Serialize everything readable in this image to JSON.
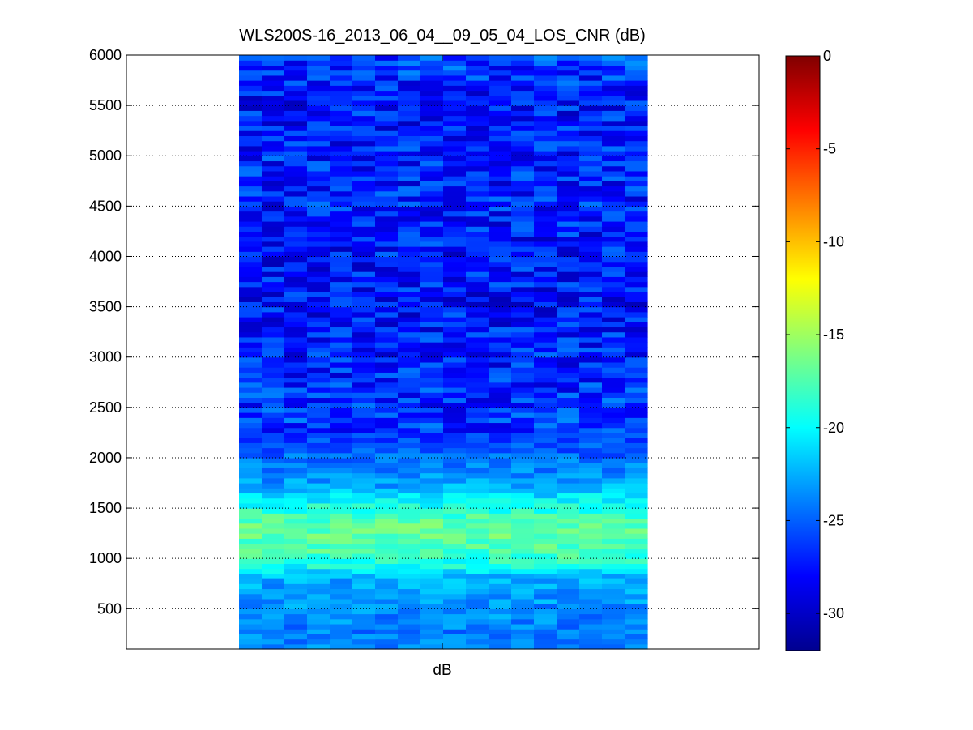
{
  "chart_data": [
    {
      "type": "heatmap",
      "title": "WLS200S-16_2013_06_04__09_05_04_LOS_CNR (dB)",
      "xlabel": "dB",
      "ylabel": "",
      "ylim": [
        100,
        6000
      ],
      "yticks": [
        500,
        1000,
        1500,
        2000,
        2500,
        3000,
        3500,
        4000,
        4500,
        5000,
        5500,
        6000
      ],
      "ytick_labels": [
        "500",
        "1000",
        "1500",
        "2000",
        "2500",
        "3000",
        "3500",
        "4000",
        "4500",
        "5000",
        "5500",
        "6000"
      ],
      "grid": true,
      "grid_axis": "y",
      "colormap": "jet",
      "n_columns": 18,
      "row_step_m": 50,
      "rows": [
        {
          "range_m": 6000,
          "cnr_db": -26
        },
        {
          "range_m": 5500,
          "cnr_db": -27.5
        },
        {
          "range_m": 5000,
          "cnr_db": -27
        },
        {
          "range_m": 4500,
          "cnr_db": -27
        },
        {
          "range_m": 4000,
          "cnr_db": -27.5
        },
        {
          "range_m": 3500,
          "cnr_db": -27.5
        },
        {
          "range_m": 3000,
          "cnr_db": -27
        },
        {
          "range_m": 2500,
          "cnr_db": -26.5
        },
        {
          "range_m": 2200,
          "cnr_db": -26
        },
        {
          "range_m": 2000,
          "cnr_db": -24.5
        },
        {
          "range_m": 1800,
          "cnr_db": -23.5
        },
        {
          "range_m": 1700,
          "cnr_db": -22.5
        },
        {
          "range_m": 1600,
          "cnr_db": -20.5
        },
        {
          "range_m": 1500,
          "cnr_db": -19
        },
        {
          "range_m": 1400,
          "cnr_db": -17.5
        },
        {
          "range_m": 1300,
          "cnr_db": -17
        },
        {
          "range_m": 1200,
          "cnr_db": -17
        },
        {
          "range_m": 1100,
          "cnr_db": -17.5
        },
        {
          "range_m": 1000,
          "cnr_db": -18.5
        },
        {
          "range_m": 900,
          "cnr_db": -20
        },
        {
          "range_m": 850,
          "cnr_db": -21.5
        },
        {
          "range_m": 800,
          "cnr_db": -22.5
        },
        {
          "range_m": 700,
          "cnr_db": -23
        },
        {
          "range_m": 500,
          "cnr_db": -23.5
        },
        {
          "range_m": 300,
          "cnr_db": -24
        },
        {
          "range_m": 100,
          "cnr_db": -24
        }
      ]
    },
    {
      "type": "colorbar",
      "colormap": "jet",
      "clim": [
        -32,
        0
      ],
      "ticks": [
        0,
        -5,
        -10,
        -15,
        -20,
        -25,
        -30
      ],
      "tick_labels": [
        "0",
        "-5",
        "-10",
        "-15",
        "-20",
        "-25",
        "-30"
      ]
    }
  ]
}
